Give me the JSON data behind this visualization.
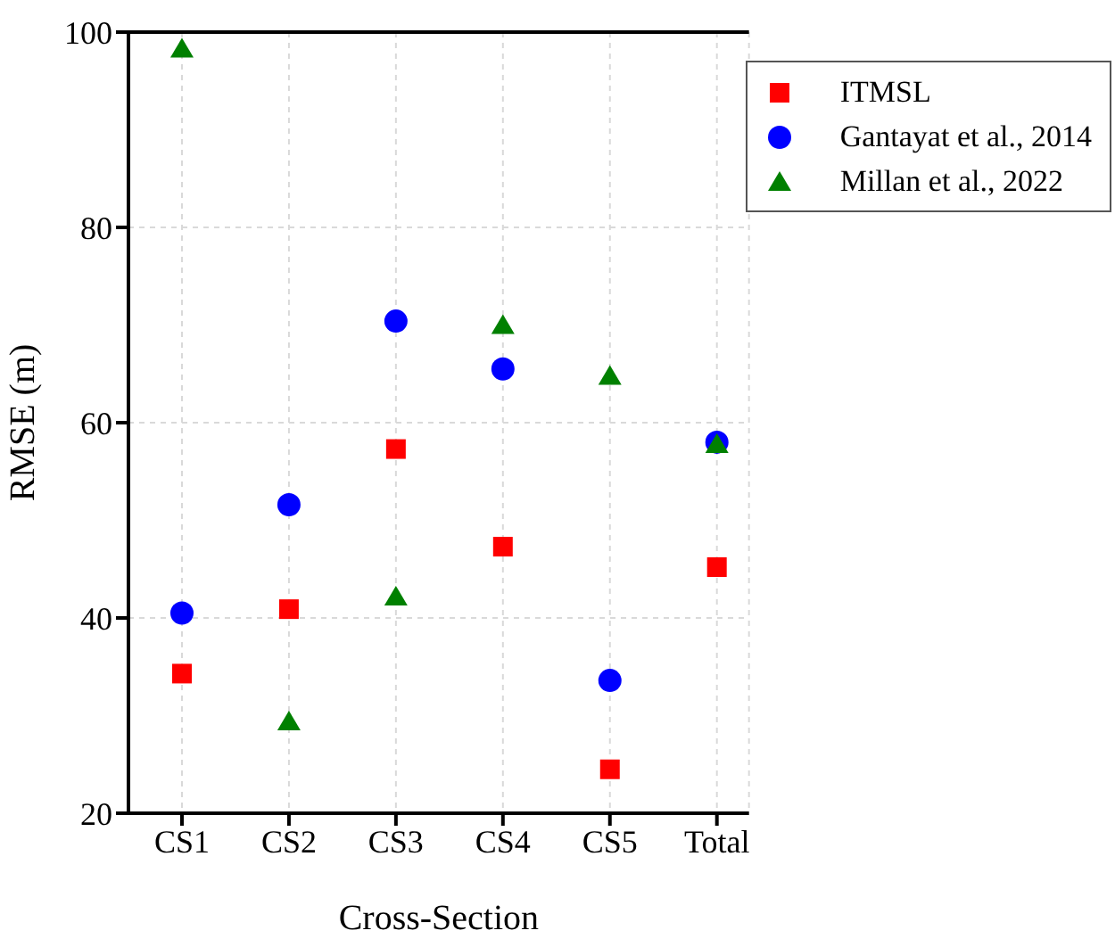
{
  "chart_data": {
    "type": "scatter",
    "xlabel": "Cross-Section",
    "ylabel": "RMSE (m)",
    "categories": [
      "CS1",
      "CS2",
      "CS3",
      "CS4",
      "CS5",
      "Total"
    ],
    "series": [
      {
        "name": "ITMSL",
        "color": "#ff0000",
        "marker": "square",
        "values": [
          34.3,
          40.9,
          57.3,
          47.3,
          24.5,
          45.2
        ]
      },
      {
        "name": "Gantayat et al., 2014",
        "color": "#0000ff",
        "marker": "circle",
        "values": [
          40.5,
          51.6,
          70.4,
          65.5,
          33.6,
          58.0
        ]
      },
      {
        "name": "Millan et al., 2022",
        "color": "#008000",
        "marker": "triangle",
        "values": [
          98.3,
          29.4,
          42.2,
          70.0,
          64.8,
          57.8
        ]
      }
    ],
    "ylim": [
      20,
      100
    ],
    "yticks": [
      20,
      40,
      60,
      80,
      100
    ],
    "grid": true,
    "legend": "top right"
  }
}
